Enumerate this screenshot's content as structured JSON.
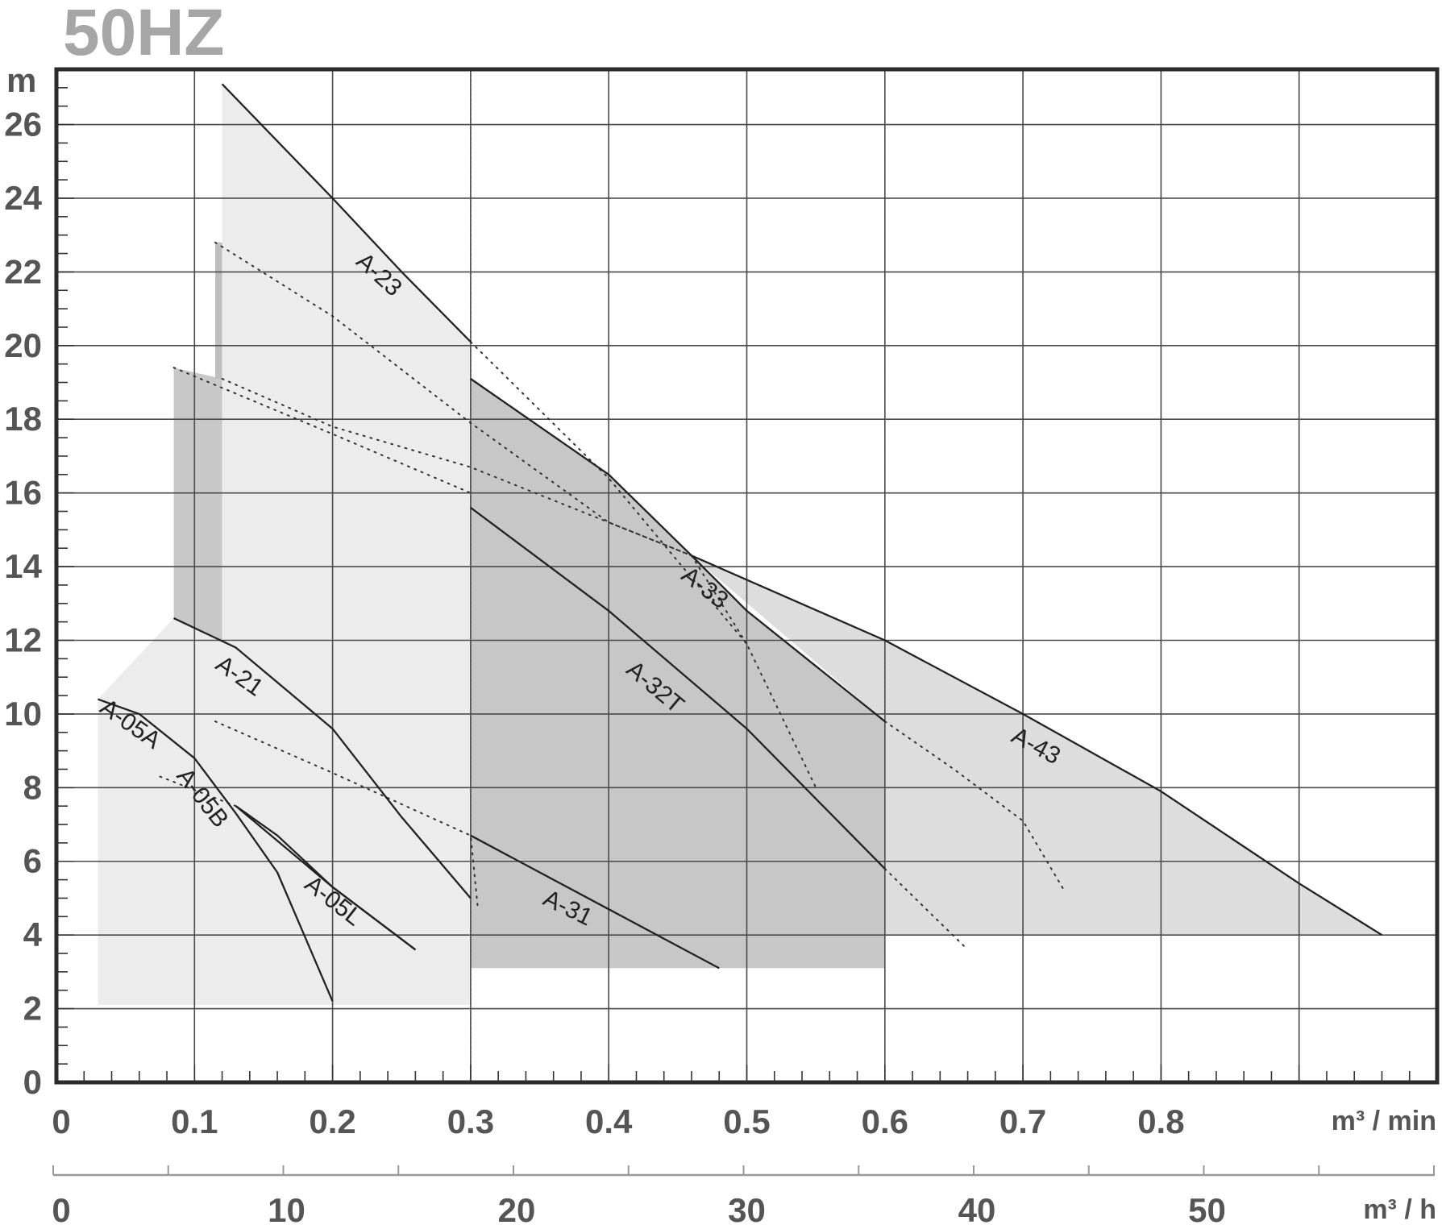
{
  "chart_data": {
    "type": "line",
    "title": "50HZ",
    "ylabel": "m",
    "xlabel": "m³ / min",
    "x2label": "m³ / h",
    "xlim": [
      0,
      1.0
    ],
    "ylim": [
      0,
      27.5
    ],
    "yticks": [
      0,
      2,
      4,
      6,
      8,
      10,
      12,
      14,
      16,
      18,
      20,
      22,
      24,
      26
    ],
    "xticks": [
      0,
      0.1,
      0.2,
      0.3,
      0.4,
      0.5,
      0.6,
      0.7,
      0.8
    ],
    "xtick_labels": [
      "0",
      "0.1",
      "0.2",
      "0.3",
      "0.4",
      "0.5",
      "0.6",
      "0.7",
      "0.8"
    ],
    "x2ticks": [
      0,
      10,
      20,
      30,
      40,
      50
    ],
    "x2tick_labels": [
      "0",
      "10",
      "20",
      "30",
      "40",
      "50"
    ],
    "grid": true,
    "regions": [
      {
        "color": "#dddddd",
        "points": [
          [
            0.46,
            14.3
          ],
          [
            0.6,
            12.0
          ],
          [
            0.7,
            10.0
          ],
          [
            0.8,
            7.9
          ],
          [
            0.9,
            5.4
          ],
          [
            0.96,
            4.0
          ],
          [
            0.6,
            4.0
          ],
          [
            0.6,
            9.8
          ]
        ]
      },
      {
        "color": "#c7c7c7",
        "points": [
          [
            0.3,
            19.1
          ],
          [
            0.4,
            16.5
          ],
          [
            0.46,
            14.3
          ],
          [
            0.5,
            12.8
          ],
          [
            0.6,
            9.8
          ],
          [
            0.6,
            3.1
          ],
          [
            0.3,
            3.1
          ]
        ]
      },
      {
        "color": "#c8c8c8",
        "points": [
          [
            0.085,
            19.4
          ],
          [
            0.12,
            19.1
          ],
          [
            0.12,
            12.0
          ],
          [
            0.085,
            12.6
          ]
        ]
      },
      {
        "color": "#bfbfbf",
        "points": [
          [
            0.115,
            22.8
          ],
          [
            0.12,
            22.8
          ],
          [
            0.12,
            19.1
          ],
          [
            0.115,
            19.1
          ]
        ]
      },
      {
        "color": "#ececec",
        "points": [
          [
            0.12,
            27.1
          ],
          [
            0.2,
            24.0
          ],
          [
            0.3,
            20.1
          ],
          [
            0.3,
            2.1
          ],
          [
            0.03,
            2.1
          ],
          [
            0.03,
            10.4
          ],
          [
            0.085,
            12.6
          ],
          [
            0.12,
            12.0
          ]
        ]
      }
    ],
    "series": [
      {
        "name": "A-23",
        "points": [
          [
            0.12,
            27.1
          ],
          [
            0.2,
            24.0
          ],
          [
            0.25,
            22.0
          ],
          [
            0.3,
            20.1
          ]
        ]
      },
      {
        "name": "A-21",
        "points": [
          [
            0.085,
            12.6
          ],
          [
            0.13,
            11.8
          ],
          [
            0.2,
            9.6
          ],
          [
            0.25,
            7.2
          ],
          [
            0.3,
            5.0
          ]
        ]
      },
      {
        "name": "A-05A",
        "points": [
          [
            0.03,
            10.4
          ],
          [
            0.06,
            10.0
          ],
          [
            0.1,
            8.8
          ],
          [
            0.13,
            7.3
          ],
          [
            0.16,
            5.7
          ],
          [
            0.2,
            2.2
          ]
        ]
      },
      {
        "name": "A-05B",
        "points": [
          [
            0.13,
            7.5
          ],
          [
            0.16,
            6.7
          ],
          [
            0.2,
            5.3
          ],
          [
            0.26,
            3.6
          ]
        ]
      },
      {
        "name": "A-05L",
        "points": [
          [
            0.13,
            7.5
          ],
          [
            0.2,
            5.3
          ],
          [
            0.26,
            3.6
          ]
        ]
      },
      {
        "name": "A-33",
        "points": [
          [
            0.3,
            19.1
          ],
          [
            0.4,
            16.5
          ],
          [
            0.46,
            14.3
          ],
          [
            0.5,
            12.8
          ],
          [
            0.6,
            9.8
          ]
        ]
      },
      {
        "name": "A-32T",
        "points": [
          [
            0.3,
            15.6
          ],
          [
            0.4,
            12.8
          ],
          [
            0.5,
            9.6
          ],
          [
            0.6,
            5.8
          ]
        ]
      },
      {
        "name": "A-31",
        "points": [
          [
            0.3,
            6.7
          ],
          [
            0.4,
            4.7
          ],
          [
            0.48,
            3.1
          ]
        ]
      },
      {
        "name": "A-43",
        "points": [
          [
            0.46,
            14.3
          ],
          [
            0.6,
            12.0
          ],
          [
            0.7,
            10.0
          ],
          [
            0.8,
            7.9
          ],
          [
            0.9,
            5.4
          ],
          [
            0.96,
            4.0
          ]
        ]
      }
    ],
    "dotted": [
      [
        [
          0.115,
          22.8
        ],
        [
          0.2,
          20.8
        ],
        [
          0.3,
          17.9
        ],
        [
          0.4,
          15.2
        ],
        [
          0.46,
          14.3
        ]
      ],
      [
        [
          0.12,
          19.1
        ],
        [
          0.2,
          17.8
        ],
        [
          0.3,
          16.7
        ],
        [
          0.42,
          14.9
        ],
        [
          0.46,
          14.3
        ]
      ],
      [
        [
          0.085,
          19.4
        ],
        [
          0.2,
          17.6
        ],
        [
          0.3,
          16.0
        ]
      ],
      [
        [
          0.3,
          20.1
        ],
        [
          0.4,
          16.4
        ],
        [
          0.5,
          11.9
        ],
        [
          0.55,
          8.0
        ]
      ],
      [
        [
          0.46,
          14.3
        ],
        [
          0.5,
          11.9
        ]
      ],
      [
        [
          0.115,
          9.8
        ],
        [
          0.2,
          8.4
        ],
        [
          0.3,
          6.7
        ],
        [
          0.305,
          4.8
        ]
      ],
      [
        [
          0.075,
          8.3
        ],
        [
          0.13,
          7.5
        ]
      ],
      [
        [
          0.6,
          9.8
        ],
        [
          0.65,
          8.5
        ],
        [
          0.7,
          7.1
        ],
        [
          0.73,
          5.2
        ]
      ],
      [
        [
          0.6,
          5.8
        ],
        [
          0.63,
          4.7
        ],
        [
          0.66,
          3.6
        ]
      ]
    ],
    "dashed_verticals": [
      0.3,
      0.6
    ],
    "curve_labels": [
      {
        "text": "A-23",
        "x": 0.233,
        "y": 21.9,
        "angle": 42
      },
      {
        "text": "A-21",
        "x": 0.132,
        "y": 11.0,
        "angle": 35
      },
      {
        "text": "A-05A",
        "x": 0.053,
        "y": 9.7,
        "angle": 35
      },
      {
        "text": "A-05B",
        "x": 0.105,
        "y": 7.7,
        "angle": 52
      },
      {
        "text": "A-05L",
        "x": 0.2,
        "y": 4.9,
        "angle": 38
      },
      {
        "text": "A-33",
        "x": 0.469,
        "y": 13.4,
        "angle": 38
      },
      {
        "text": "A-32T",
        "x": 0.433,
        "y": 10.7,
        "angle": 40
      },
      {
        "text": "A-31",
        "x": 0.37,
        "y": 4.7,
        "angle": 26
      },
      {
        "text": "A-43",
        "x": 0.709,
        "y": 9.1,
        "angle": 28
      }
    ]
  }
}
